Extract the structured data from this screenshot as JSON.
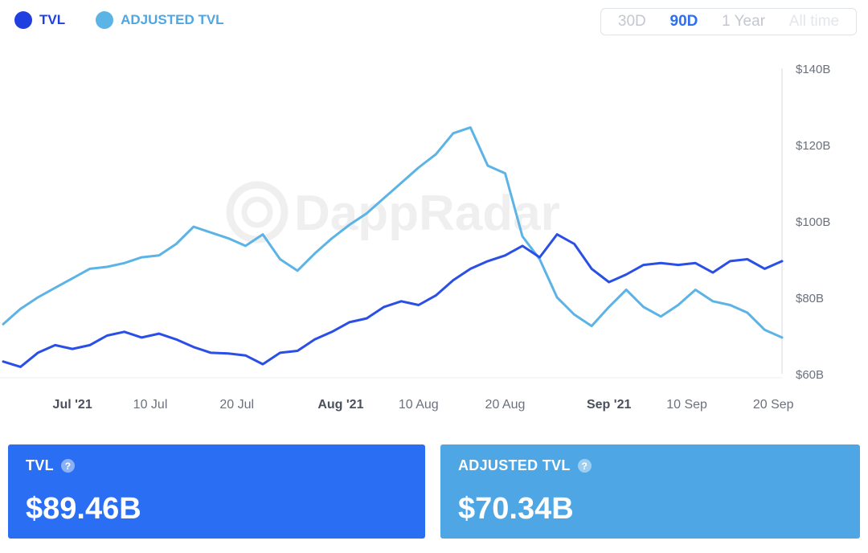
{
  "legend": {
    "tvl_label": "TVL",
    "adjusted_label": "ADJUSTED TVL"
  },
  "range_tabs": [
    {
      "label": "30D",
      "active": false
    },
    {
      "label": "90D",
      "active": true
    },
    {
      "label": "1 Year",
      "active": false
    },
    {
      "label": "All time",
      "active": false
    }
  ],
  "watermark": "DappRadar",
  "cards": {
    "tvl": {
      "title": "TVL",
      "value": "$89.46B"
    },
    "adjusted": {
      "title": "ADJUSTED TVL",
      "value": "$70.34B"
    }
  },
  "colors": {
    "tvl": "#2a4fe6",
    "adjusted": "#5cb3e6",
    "card_tvl": "#2a6ff3",
    "card_adjusted": "#4ea6e4"
  },
  "chart_data": {
    "type": "line",
    "y_ticks": [
      {
        "value": 60,
        "label": "$60B"
      },
      {
        "value": 80,
        "label": "$80B"
      },
      {
        "value": 100,
        "label": "$100B"
      },
      {
        "value": 120,
        "label": "$120B"
      },
      {
        "value": 140,
        "label": "$140B"
      }
    ],
    "ylim": [
      60,
      140
    ],
    "x_range": [
      "2021-06-23",
      "2021-09-21"
    ],
    "x_ticks": [
      {
        "date": "2021-07-01",
        "label": "Jul '21",
        "bold": true
      },
      {
        "date": "2021-07-10",
        "label": "10 Jul",
        "bold": false
      },
      {
        "date": "2021-07-20",
        "label": "20 Jul",
        "bold": false
      },
      {
        "date": "2021-08-01",
        "label": "Aug '21",
        "bold": true
      },
      {
        "date": "2021-08-10",
        "label": "10 Aug",
        "bold": false
      },
      {
        "date": "2021-08-20",
        "label": "20 Aug",
        "bold": false
      },
      {
        "date": "2021-09-01",
        "label": "Sep '21",
        "bold": true
      },
      {
        "date": "2021-09-10",
        "label": "10 Sep",
        "bold": false
      },
      {
        "date": "2021-09-20",
        "label": "20 Sep",
        "bold": false
      }
    ],
    "series": [
      {
        "name": "TVL",
        "points": [
          [
            "2021-06-23",
            63.2
          ],
          [
            "2021-06-25",
            61.8
          ],
          [
            "2021-06-27",
            65.5
          ],
          [
            "2021-06-29",
            67.5
          ],
          [
            "2021-07-01",
            66.5
          ],
          [
            "2021-07-03",
            67.5
          ],
          [
            "2021-07-05",
            70.0
          ],
          [
            "2021-07-07",
            71.0
          ],
          [
            "2021-07-09",
            69.5
          ],
          [
            "2021-07-11",
            70.5
          ],
          [
            "2021-07-13",
            69.0
          ],
          [
            "2021-07-15",
            67.0
          ],
          [
            "2021-07-17",
            65.5
          ],
          [
            "2021-07-19",
            65.3
          ],
          [
            "2021-07-21",
            64.8
          ],
          [
            "2021-07-23",
            62.5
          ],
          [
            "2021-07-25",
            65.5
          ],
          [
            "2021-07-27",
            66.0
          ],
          [
            "2021-07-29",
            69.0
          ],
          [
            "2021-07-31",
            71.0
          ],
          [
            "2021-08-02",
            73.5
          ],
          [
            "2021-08-04",
            74.5
          ],
          [
            "2021-08-06",
            77.5
          ],
          [
            "2021-08-08",
            79.0
          ],
          [
            "2021-08-10",
            78.0
          ],
          [
            "2021-08-12",
            80.5
          ],
          [
            "2021-08-14",
            84.5
          ],
          [
            "2021-08-16",
            87.5
          ],
          [
            "2021-08-18",
            89.5
          ],
          [
            "2021-08-20",
            91.0
          ],
          [
            "2021-08-22",
            93.5
          ],
          [
            "2021-08-24",
            90.5
          ],
          [
            "2021-08-26",
            96.5
          ],
          [
            "2021-08-28",
            94.0
          ],
          [
            "2021-08-30",
            87.5
          ],
          [
            "2021-09-01",
            84.0
          ],
          [
            "2021-09-03",
            86.0
          ],
          [
            "2021-09-05",
            88.5
          ],
          [
            "2021-09-07",
            89.0
          ],
          [
            "2021-09-09",
            88.5
          ],
          [
            "2021-09-11",
            89.0
          ],
          [
            "2021-09-13",
            86.5
          ],
          [
            "2021-09-15",
            89.5
          ],
          [
            "2021-09-17",
            90.0
          ],
          [
            "2021-09-19",
            87.5
          ],
          [
            "2021-09-21",
            89.5
          ]
        ]
      },
      {
        "name": "ADJUSTED TVL",
        "points": [
          [
            "2021-06-23",
            73.0
          ],
          [
            "2021-06-25",
            77.0
          ],
          [
            "2021-06-27",
            80.0
          ],
          [
            "2021-06-29",
            82.5
          ],
          [
            "2021-07-01",
            85.0
          ],
          [
            "2021-07-03",
            87.5
          ],
          [
            "2021-07-05",
            88.0
          ],
          [
            "2021-07-07",
            89.0
          ],
          [
            "2021-07-09",
            90.5
          ],
          [
            "2021-07-11",
            91.0
          ],
          [
            "2021-07-13",
            94.0
          ],
          [
            "2021-07-15",
            98.5
          ],
          [
            "2021-07-17",
            97.0
          ],
          [
            "2021-07-19",
            95.5
          ],
          [
            "2021-07-21",
            93.5
          ],
          [
            "2021-07-23",
            96.5
          ],
          [
            "2021-07-25",
            90.0
          ],
          [
            "2021-07-27",
            87.0
          ],
          [
            "2021-07-29",
            91.5
          ],
          [
            "2021-07-31",
            95.5
          ],
          [
            "2021-08-02",
            99.0
          ],
          [
            "2021-08-04",
            102.0
          ],
          [
            "2021-08-06",
            106.0
          ],
          [
            "2021-08-08",
            110.0
          ],
          [
            "2021-08-10",
            114.0
          ],
          [
            "2021-08-12",
            117.5
          ],
          [
            "2021-08-14",
            123.0
          ],
          [
            "2021-08-16",
            124.5
          ],
          [
            "2021-08-18",
            114.5
          ],
          [
            "2021-08-20",
            112.5
          ],
          [
            "2021-08-22",
            96.0
          ],
          [
            "2021-08-24",
            90.0
          ],
          [
            "2021-08-26",
            80.0
          ],
          [
            "2021-08-28",
            75.5
          ],
          [
            "2021-08-30",
            72.5
          ],
          [
            "2021-09-01",
            77.5
          ],
          [
            "2021-09-03",
            82.0
          ],
          [
            "2021-09-05",
            77.5
          ],
          [
            "2021-09-07",
            75.0
          ],
          [
            "2021-09-09",
            78.0
          ],
          [
            "2021-09-11",
            82.0
          ],
          [
            "2021-09-13",
            79.0
          ],
          [
            "2021-09-15",
            78.0
          ],
          [
            "2021-09-17",
            76.0
          ],
          [
            "2021-09-19",
            71.5
          ],
          [
            "2021-09-21",
            69.5
          ]
        ]
      }
    ]
  }
}
